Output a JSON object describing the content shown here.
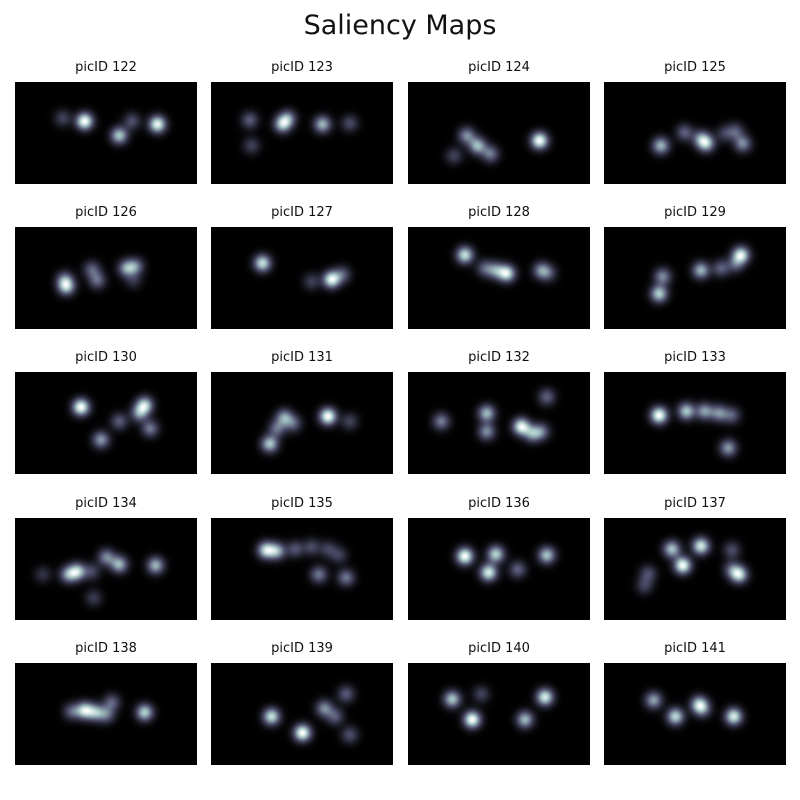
{
  "figure": {
    "title": "Saliency Maps"
  },
  "chart_data": {
    "type": "heatmap",
    "title": "Saliency Maps",
    "colormap": "bone",
    "x_range": [
      0,
      1
    ],
    "y_range": [
      0,
      1
    ],
    "panels": [
      {
        "label": "picID 122",
        "points": [
          [
            0.26,
            0.35,
            0.3
          ],
          [
            0.38,
            0.38,
            1.0
          ],
          [
            0.57,
            0.52,
            0.75
          ],
          [
            0.64,
            0.38,
            0.35
          ],
          [
            0.78,
            0.41,
            0.95
          ]
        ]
      },
      {
        "label": "picID 123",
        "points": [
          [
            0.21,
            0.37,
            0.55
          ],
          [
            0.22,
            0.62,
            0.4
          ],
          [
            0.39,
            0.41,
            1.0
          ],
          [
            0.42,
            0.35,
            0.7
          ],
          [
            0.61,
            0.41,
            0.95
          ],
          [
            0.76,
            0.4,
            0.45
          ]
        ]
      },
      {
        "label": "picID 124",
        "points": [
          [
            0.25,
            0.72,
            0.3
          ],
          [
            0.32,
            0.52,
            0.55
          ],
          [
            0.38,
            0.62,
            0.7
          ],
          [
            0.45,
            0.7,
            0.5
          ],
          [
            0.72,
            0.57,
            1.0
          ]
        ]
      },
      {
        "label": "picID 125",
        "points": [
          [
            0.31,
            0.62,
            1.0
          ],
          [
            0.44,
            0.49,
            0.6
          ],
          [
            0.53,
            0.55,
            0.75
          ],
          [
            0.56,
            0.6,
            1.0
          ],
          [
            0.66,
            0.5,
            0.4
          ],
          [
            0.72,
            0.48,
            0.55
          ],
          [
            0.76,
            0.6,
            0.8
          ]
        ]
      },
      {
        "label": "picID 126",
        "points": [
          [
            0.27,
            0.51,
            0.6
          ],
          [
            0.28,
            0.58,
            1.0
          ],
          [
            0.42,
            0.41,
            0.55
          ],
          [
            0.45,
            0.52,
            0.6
          ],
          [
            0.61,
            0.4,
            0.8
          ],
          [
            0.66,
            0.38,
            0.65
          ],
          [
            0.65,
            0.52,
            0.3
          ]
        ]
      },
      {
        "label": "picID 127",
        "points": [
          [
            0.28,
            0.35,
            0.9
          ],
          [
            0.55,
            0.53,
            0.3
          ],
          [
            0.66,
            0.51,
            1.0
          ],
          [
            0.72,
            0.46,
            0.4
          ]
        ]
      },
      {
        "label": "picID 128",
        "points": [
          [
            0.31,
            0.27,
            0.95
          ],
          [
            0.42,
            0.4,
            0.45
          ],
          [
            0.48,
            0.42,
            0.6
          ],
          [
            0.54,
            0.45,
            1.0
          ],
          [
            0.73,
            0.42,
            0.6
          ],
          [
            0.77,
            0.45,
            0.35
          ]
        ]
      },
      {
        "label": "picID 129",
        "points": [
          [
            0.3,
            0.65,
            0.85
          ],
          [
            0.32,
            0.48,
            0.6
          ],
          [
            0.53,
            0.42,
            0.75
          ],
          [
            0.64,
            0.4,
            0.45
          ],
          [
            0.75,
            0.27,
            1.0
          ],
          [
            0.72,
            0.36,
            0.4
          ]
        ]
      },
      {
        "label": "picID 130",
        "points": [
          [
            0.36,
            0.34,
            1.0
          ],
          [
            0.47,
            0.66,
            0.6
          ],
          [
            0.57,
            0.48,
            0.4
          ],
          [
            0.68,
            0.4,
            0.55
          ],
          [
            0.71,
            0.32,
            0.8
          ],
          [
            0.74,
            0.55,
            0.5
          ]
        ]
      },
      {
        "label": "picID 131",
        "points": [
          [
            0.32,
            0.7,
            0.75
          ],
          [
            0.36,
            0.55,
            0.45
          ],
          [
            0.4,
            0.44,
            0.6
          ],
          [
            0.45,
            0.5,
            0.4
          ],
          [
            0.64,
            0.43,
            1.0
          ],
          [
            0.76,
            0.48,
            0.3
          ]
        ]
      },
      {
        "label": "picID 132",
        "points": [
          [
            0.18,
            0.48,
            0.55
          ],
          [
            0.43,
            0.4,
            0.75
          ],
          [
            0.43,
            0.58,
            0.6
          ],
          [
            0.62,
            0.53,
            1.0
          ],
          [
            0.68,
            0.6,
            0.6
          ],
          [
            0.73,
            0.58,
            0.5
          ],
          [
            0.76,
            0.24,
            0.45
          ]
        ]
      },
      {
        "label": "picID 133",
        "points": [
          [
            0.3,
            0.42,
            1.0
          ],
          [
            0.45,
            0.38,
            0.75
          ],
          [
            0.55,
            0.38,
            0.6
          ],
          [
            0.63,
            0.4,
            0.55
          ],
          [
            0.7,
            0.42,
            0.4
          ],
          [
            0.68,
            0.74,
            0.6
          ]
        ]
      },
      {
        "label": "picID 134",
        "points": [
          [
            0.15,
            0.55,
            0.3
          ],
          [
            0.29,
            0.55,
            0.75
          ],
          [
            0.34,
            0.52,
            1.0
          ],
          [
            0.42,
            0.52,
            0.4
          ],
          [
            0.5,
            0.38,
            0.7
          ],
          [
            0.57,
            0.45,
            0.9
          ],
          [
            0.43,
            0.78,
            0.35
          ],
          [
            0.77,
            0.46,
            0.9
          ]
        ]
      },
      {
        "label": "picID 135",
        "points": [
          [
            0.3,
            0.31,
            1.0
          ],
          [
            0.36,
            0.32,
            0.8
          ],
          [
            0.46,
            0.3,
            0.45
          ],
          [
            0.55,
            0.28,
            0.4
          ],
          [
            0.64,
            0.3,
            0.35
          ],
          [
            0.7,
            0.36,
            0.35
          ],
          [
            0.59,
            0.55,
            0.6
          ],
          [
            0.74,
            0.58,
            0.6
          ]
        ]
      },
      {
        "label": "picID 136",
        "points": [
          [
            0.31,
            0.37,
            0.95
          ],
          [
            0.48,
            0.35,
            0.75
          ],
          [
            0.44,
            0.53,
            0.85
          ],
          [
            0.6,
            0.5,
            0.4
          ],
          [
            0.76,
            0.36,
            0.7
          ]
        ]
      },
      {
        "label": "picID 137",
        "points": [
          [
            0.24,
            0.54,
            0.35
          ],
          [
            0.22,
            0.66,
            0.3
          ],
          [
            0.37,
            0.3,
            0.75
          ],
          [
            0.43,
            0.46,
            1.0
          ],
          [
            0.53,
            0.27,
            0.9
          ],
          [
            0.7,
            0.31,
            0.35
          ],
          [
            0.74,
            0.55,
            0.85
          ],
          [
            0.7,
            0.5,
            0.4
          ]
        ]
      },
      {
        "label": "picID 138",
        "points": [
          [
            0.31,
            0.47,
            0.5
          ],
          [
            0.38,
            0.46,
            1.0
          ],
          [
            0.44,
            0.48,
            0.75
          ],
          [
            0.5,
            0.5,
            0.55
          ],
          [
            0.53,
            0.38,
            0.5
          ],
          [
            0.71,
            0.48,
            0.95
          ]
        ]
      },
      {
        "label": "picID 139",
        "points": [
          [
            0.33,
            0.52,
            0.85
          ],
          [
            0.5,
            0.68,
            1.0
          ],
          [
            0.62,
            0.44,
            0.55
          ],
          [
            0.68,
            0.52,
            0.4
          ],
          [
            0.74,
            0.3,
            0.4
          ],
          [
            0.76,
            0.7,
            0.35
          ]
        ]
      },
      {
        "label": "picID 140",
        "points": [
          [
            0.24,
            0.35,
            0.75
          ],
          [
            0.35,
            0.55,
            1.0
          ],
          [
            0.4,
            0.3,
            0.3
          ],
          [
            0.64,
            0.55,
            0.7
          ],
          [
            0.75,
            0.33,
            0.9
          ]
        ]
      },
      {
        "label": "picID 141",
        "points": [
          [
            0.27,
            0.36,
            0.7
          ],
          [
            0.39,
            0.52,
            0.9
          ],
          [
            0.52,
            0.4,
            0.8
          ],
          [
            0.54,
            0.45,
            0.45
          ],
          [
            0.71,
            0.52,
            1.0
          ]
        ]
      }
    ]
  }
}
